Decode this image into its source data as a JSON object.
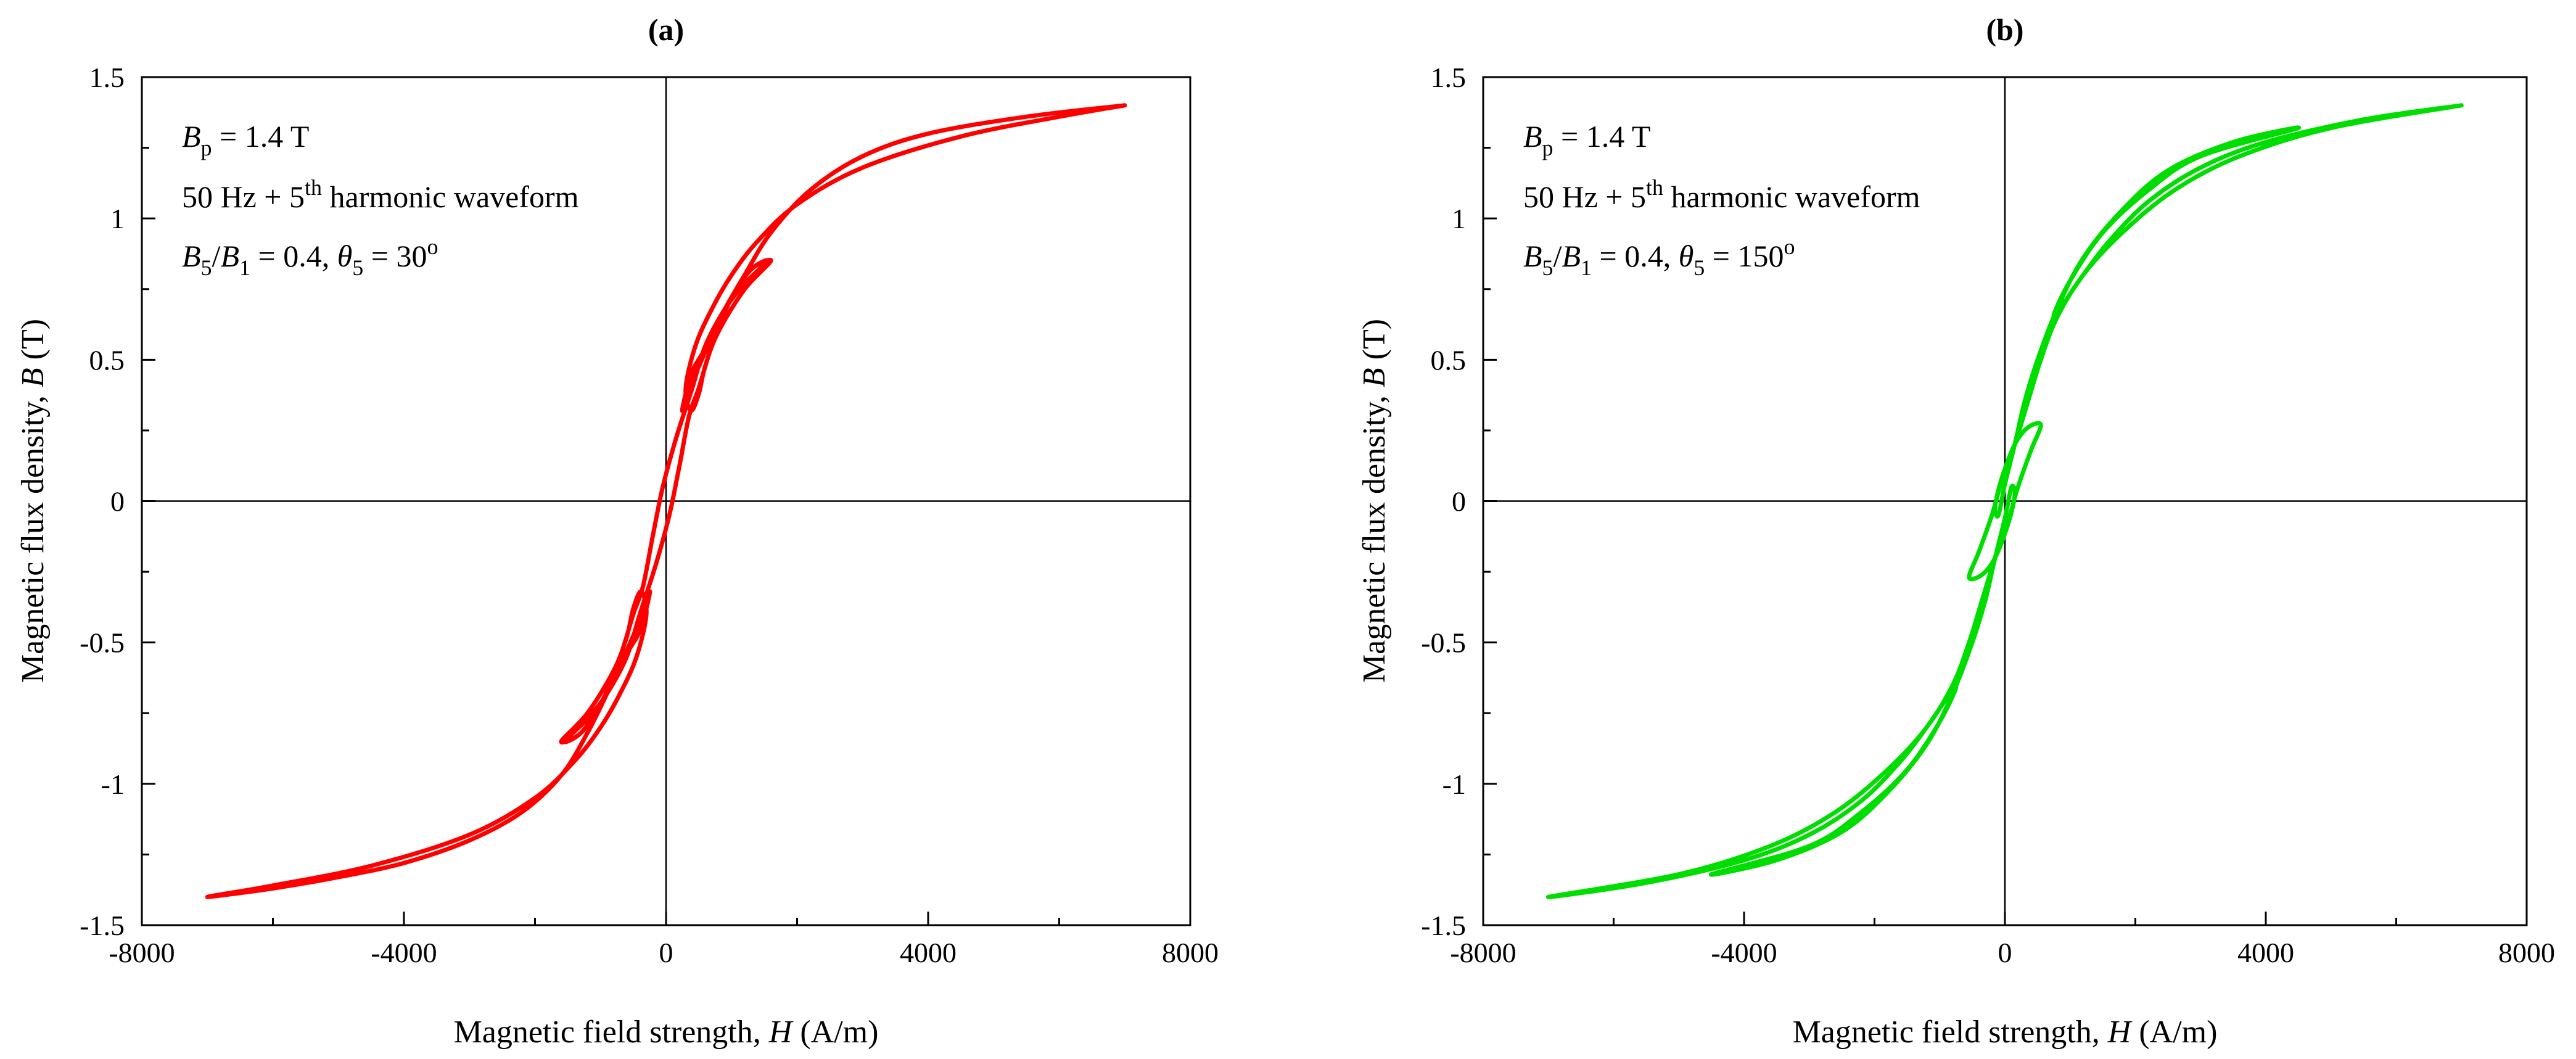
{
  "chart_data": [
    {
      "type": "line",
      "panel_label": "(a)",
      "title": "",
      "xlabel": {
        "prefix": "Magnetic field strength, ",
        "symbol": "H",
        "suffix": " (A/m)"
      },
      "ylabel": {
        "prefix": "Magnetic flux density, ",
        "symbol": "B",
        "suffix": " (T)"
      },
      "xlim": [
        -8000,
        8000
      ],
      "ylim": [
        -1.5,
        1.5
      ],
      "x_ticks": [
        -8000,
        -4000,
        0,
        4000,
        8000
      ],
      "x_tick_labels": [
        "-8000",
        "-4000",
        "0",
        "4000",
        "8000"
      ],
      "y_ticks": [
        1.5,
        1,
        0.5,
        0,
        -0.5,
        -1,
        -1.5
      ],
      "y_tick_labels": [
        "1.5",
        "1",
        "0.5",
        "0",
        "-0.5",
        "-1",
        "-1.5"
      ],
      "grid": false,
      "zero_lines": true,
      "annotations": {
        "line1": {
          "sym": "B",
          "sub": "p",
          "rest": " = 1.4 T"
        },
        "line2": {
          "pre": "50 Hz + 5",
          "sup": "th",
          "post": " harmonic waveform"
        },
        "line3": {
          "b5": "B",
          "b5sub": "5",
          "slash": "/",
          "b1": "B",
          "b1sub": "1",
          "mid": " = 0.4,  ",
          "theta": "θ",
          "thetasub": "5",
          "eq": " = 30",
          "deg": "o"
        }
      },
      "series": [
        {
          "name": "B-H loop, 50 Hz + 5th harmonic, B5/B1 = 0.4, θ5 = 30°",
          "color": "#ff0000",
          "points": [
            [
              7000,
              1.4
            ],
            [
              5500,
              1.36
            ],
            [
              4000,
              1.3
            ],
            [
              3000,
              1.22
            ],
            [
              2200,
              1.1
            ],
            [
              1600,
              0.95
            ],
            [
              1200,
              0.8
            ],
            [
              900,
              0.68
            ],
            [
              700,
              0.58
            ],
            [
              550,
              0.52
            ],
            [
              400,
              0.46
            ],
            [
              300,
              0.38
            ],
            [
              250,
              0.32
            ],
            [
              400,
              0.42
            ],
            [
              700,
              0.58
            ],
            [
              1000,
              0.72
            ],
            [
              1300,
              0.82
            ],
            [
              1550,
              0.85
            ],
            [
              1200,
              0.77
            ],
            [
              900,
              0.68
            ],
            [
              600,
              0.55
            ],
            [
              400,
              0.4
            ],
            [
              150,
              0.22
            ],
            [
              -50,
              0.05
            ],
            [
              -200,
              -0.12
            ],
            [
              -350,
              -0.3
            ],
            [
              -500,
              -0.4
            ],
            [
              -700,
              -0.55
            ],
            [
              -1000,
              -0.72
            ],
            [
              -1300,
              -0.82
            ],
            [
              -1600,
              -0.85
            ],
            [
              -1200,
              -0.75
            ],
            [
              -800,
              -0.6
            ],
            [
              -600,
              -0.48
            ],
            [
              -500,
              -0.38
            ],
            [
              -380,
              -0.32
            ],
            [
              -300,
              -0.4
            ],
            [
              -450,
              -0.55
            ],
            [
              -700,
              -0.68
            ],
            [
              -1000,
              -0.8
            ],
            [
              -1400,
              -0.92
            ],
            [
              -2000,
              -1.05
            ],
            [
              -3000,
              -1.18
            ],
            [
              -4500,
              -1.29
            ],
            [
              -6000,
              -1.36
            ],
            [
              -7000,
              -1.4
            ],
            [
              -6000,
              -1.37
            ],
            [
              -5000,
              -1.33
            ],
            [
              -4000,
              -1.28
            ],
            [
              -3000,
              -1.2
            ],
            [
              -2200,
              -1.1
            ],
            [
              -1600,
              -0.97
            ],
            [
              -1200,
              -0.82
            ],
            [
              -900,
              -0.68
            ],
            [
              -700,
              -0.58
            ],
            [
              -550,
              -0.52
            ],
            [
              -400,
              -0.46
            ],
            [
              -300,
              -0.38
            ],
            [
              -250,
              -0.32
            ],
            [
              -400,
              -0.42
            ],
            [
              -700,
              -0.58
            ],
            [
              -1000,
              -0.72
            ],
            [
              -1300,
              -0.82
            ],
            [
              -1550,
              -0.85
            ],
            [
              -1200,
              -0.77
            ],
            [
              -900,
              -0.68
            ],
            [
              -600,
              -0.55
            ],
            [
              -400,
              -0.4
            ],
            [
              -150,
              -0.22
            ],
            [
              50,
              -0.05
            ],
            [
              200,
              0.12
            ],
            [
              350,
              0.3
            ],
            [
              500,
              0.4
            ],
            [
              700,
              0.55
            ],
            [
              1000,
              0.72
            ],
            [
              1300,
              0.82
            ],
            [
              1600,
              0.85
            ],
            [
              1200,
              0.75
            ],
            [
              800,
              0.6
            ],
            [
              600,
              0.48
            ],
            [
              500,
              0.38
            ],
            [
              380,
              0.32
            ],
            [
              300,
              0.4
            ],
            [
              450,
              0.55
            ],
            [
              700,
              0.68
            ],
            [
              1000,
              0.8
            ],
            [
              1400,
              0.92
            ],
            [
              2000,
              1.05
            ],
            [
              3000,
              1.18
            ],
            [
              4500,
              1.29
            ],
            [
              6000,
              1.36
            ],
            [
              7000,
              1.4
            ]
          ]
        }
      ]
    },
    {
      "type": "line",
      "panel_label": "(b)",
      "title": "",
      "xlabel": {
        "prefix": "Magnetic field strength, ",
        "symbol": "H",
        "suffix": " (A/m)"
      },
      "ylabel": {
        "prefix": "Magnetic flux density, ",
        "symbol": "B",
        "suffix": " (T)"
      },
      "xlim": [
        -8000,
        8000
      ],
      "ylim": [
        -1.5,
        1.5
      ],
      "x_ticks": [
        -8000,
        -4000,
        0,
        4000,
        8000
      ],
      "x_tick_labels": [
        "-8000",
        "-4000",
        "0",
        "4000",
        "8000"
      ],
      "y_ticks": [
        1.5,
        1,
        0.5,
        0,
        -0.5,
        -1,
        -1.5
      ],
      "y_tick_labels": [
        "1.5",
        "1",
        "0.5",
        "0",
        "-0.5",
        "-1",
        "-1.5"
      ],
      "grid": false,
      "zero_lines": true,
      "annotations": {
        "line1": {
          "sym": "B",
          "sub": "p",
          "rest": " = 1.4 T"
        },
        "line2": {
          "pre": "50 Hz + 5",
          "sup": "th",
          "post": " harmonic waveform"
        },
        "line3": {
          "b5": "B",
          "b5sub": "5",
          "slash": "/",
          "b1": "B",
          "b1sub": "1",
          "mid": " = 0.4,  ",
          "theta": "θ",
          "thetasub": "5",
          "eq": " = 150",
          "deg": "o"
        }
      },
      "series": [
        {
          "name": "B-H loop, 50 Hz + 5th harmonic, B5/B1 = 0.4, θ5 = 150°",
          "color": "#00dd00",
          "points": [
            [
              7000,
              1.4
            ],
            [
              5500,
              1.35
            ],
            [
              4000,
              1.27
            ],
            [
              3000,
              1.18
            ],
            [
              2200,
              1.06
            ],
            [
              1600,
              0.92
            ],
            [
              1200,
              0.8
            ],
            [
              900,
              0.7
            ],
            [
              750,
              0.66
            ],
            [
              1000,
              0.78
            ],
            [
              1500,
              0.95
            ],
            [
              2200,
              1.1
            ],
            [
              3000,
              1.22
            ],
            [
              4500,
              1.32
            ],
            [
              3500,
              1.27
            ],
            [
              2500,
              1.17
            ],
            [
              1800,
              1.03
            ],
            [
              1200,
              0.86
            ],
            [
              800,
              0.68
            ],
            [
              500,
              0.5
            ],
            [
              300,
              0.35
            ],
            [
              150,
              0.2
            ],
            [
              0,
              0.06
            ],
            [
              -100,
              -0.05
            ],
            [
              -150,
              -0.02
            ],
            [
              -50,
              0.08
            ],
            [
              150,
              0.2
            ],
            [
              350,
              0.26
            ],
            [
              550,
              0.27
            ],
            [
              400,
              0.18
            ],
            [
              200,
              0.05
            ],
            [
              50,
              -0.07
            ],
            [
              -150,
              -0.2
            ],
            [
              -350,
              -0.35
            ],
            [
              -550,
              -0.5
            ],
            [
              -800,
              -0.65
            ],
            [
              -1200,
              -0.8
            ],
            [
              -1800,
              -0.95
            ],
            [
              -2600,
              -1.1
            ],
            [
              -3600,
              -1.22
            ],
            [
              -5000,
              -1.32
            ],
            [
              -7000,
              -1.4
            ],
            [
              -5500,
              -1.35
            ],
            [
              -4000,
              -1.27
            ],
            [
              -3000,
              -1.18
            ],
            [
              -2200,
              -1.06
            ],
            [
              -1600,
              -0.92
            ],
            [
              -1200,
              -0.8
            ],
            [
              -900,
              -0.7
            ],
            [
              -750,
              -0.66
            ],
            [
              -1000,
              -0.78
            ],
            [
              -1500,
              -0.95
            ],
            [
              -2200,
              -1.1
            ],
            [
              -3000,
              -1.22
            ],
            [
              -4500,
              -1.32
            ],
            [
              -3500,
              -1.27
            ],
            [
              -2500,
              -1.17
            ],
            [
              -1800,
              -1.03
            ],
            [
              -1200,
              -0.86
            ],
            [
              -800,
              -0.68
            ],
            [
              -500,
              -0.5
            ],
            [
              -300,
              -0.35
            ],
            [
              -150,
              -0.2
            ],
            [
              0,
              -0.06
            ],
            [
              100,
              0.05
            ],
            [
              150,
              0.02
            ],
            [
              50,
              -0.08
            ],
            [
              -150,
              -0.2
            ],
            [
              -350,
              -0.26
            ],
            [
              -550,
              -0.27
            ],
            [
              -400,
              -0.18
            ],
            [
              -200,
              -0.05
            ],
            [
              -50,
              0.07
            ],
            [
              150,
              0.2
            ],
            [
              350,
              0.35
            ],
            [
              550,
              0.5
            ],
            [
              800,
              0.65
            ],
            [
              1200,
              0.8
            ],
            [
              1800,
              0.95
            ],
            [
              2600,
              1.1
            ],
            [
              3600,
              1.22
            ],
            [
              5000,
              1.32
            ],
            [
              7000,
              1.4
            ]
          ]
        }
      ]
    }
  ]
}
